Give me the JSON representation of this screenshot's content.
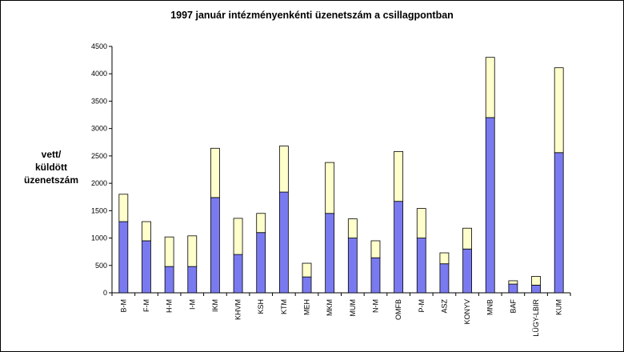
{
  "chart_data": {
    "type": "bar",
    "stacked": true,
    "title": "1997 január intézményenkénti üzenetszám a csillagpontban",
    "ylabel": "vett/\nküldött\nüzenetszám",
    "xlabel": "",
    "ylim": [
      0,
      4500
    ],
    "yticks": [
      0,
      500,
      1000,
      1500,
      2000,
      2500,
      3000,
      3500,
      4000,
      4500
    ],
    "grid": false,
    "legend": "none",
    "categories": [
      "B-M",
      "F-M",
      "H-M",
      "I-M",
      "IKM",
      "KHVM",
      "KSH",
      "KTM",
      "MEH",
      "MKM",
      "MUM",
      "N-M",
      "OMFB",
      "P-M",
      "ASZ",
      "KONYV",
      "MNB",
      "BAF",
      "LÜGY-LBIR",
      "KUM"
    ],
    "series": [
      {
        "values": [
          1300,
          950,
          480,
          480,
          1740,
          700,
          1100,
          1840,
          290,
          1450,
          1000,
          640,
          1670,
          1000,
          530,
          800,
          3200,
          160,
          140,
          2560
        ]
      },
      {
        "values": [
          500,
          350,
          540,
          560,
          900,
          660,
          350,
          840,
          250,
          930,
          350,
          310,
          910,
          540,
          200,
          380,
          1100,
          60,
          160,
          1550
        ]
      }
    ],
    "colors": [
      "#7a7af0",
      "#ffffcc"
    ]
  }
}
